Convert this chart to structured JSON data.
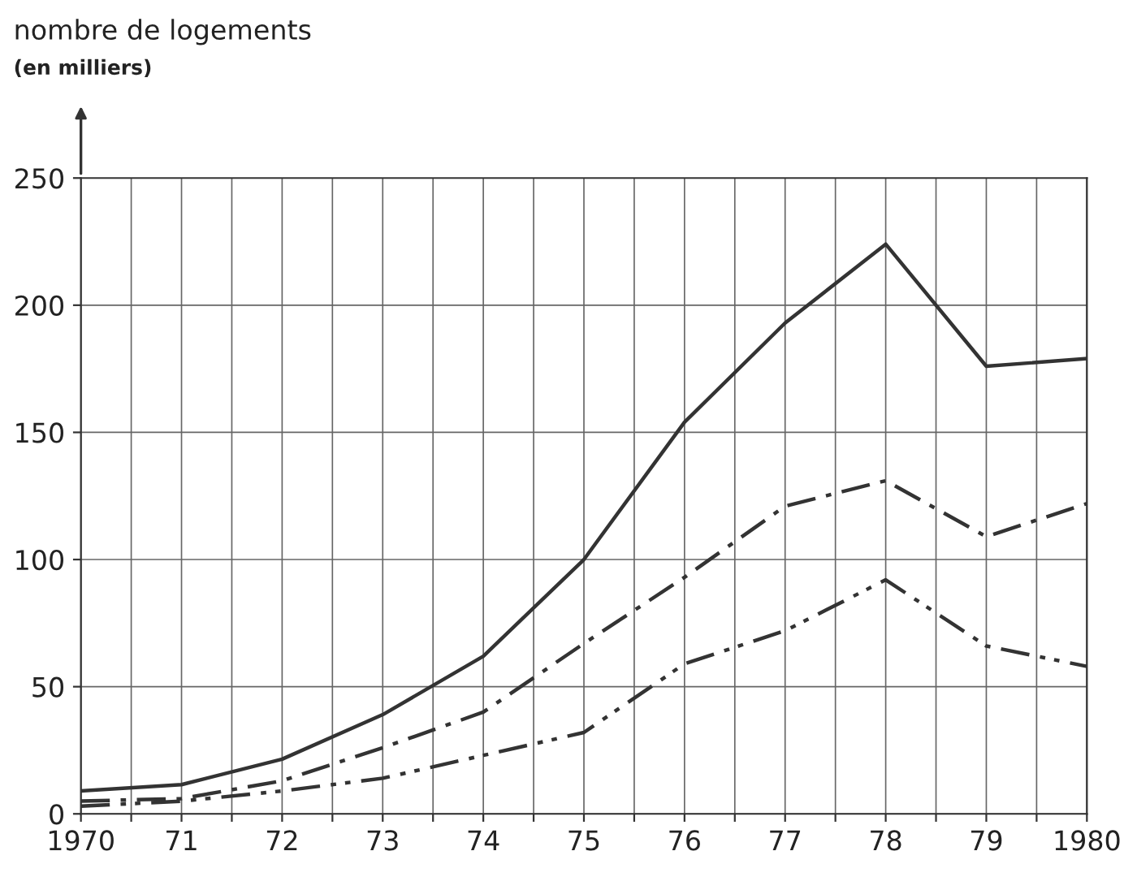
{
  "chart_data": {
    "type": "line",
    "ylabel": "nombre de logements",
    "annotations": [
      "(en milliers)"
    ],
    "x": [
      1970,
      1971,
      1972,
      1973,
      1974,
      1975,
      1976,
      1977,
      1978,
      1979,
      1980
    ],
    "series": [
      {
        "color": "#333333",
        "line_style": "solid",
        "values": [
          9,
          11.5,
          21.5,
          39,
          62,
          100,
          154,
          193,
          224,
          176,
          179
        ]
      },
      {
        "color": "#333333",
        "line_style": "dashdot",
        "values": [
          5,
          6,
          13,
          26,
          40,
          67,
          93,
          121,
          131,
          109,
          122
        ]
      },
      {
        "color": "#333333",
        "line_style": "dashdotdot",
        "values": [
          3,
          5,
          9,
          14,
          23,
          32,
          59,
          72,
          92,
          66,
          58
        ]
      }
    ],
    "xlim": [
      1970,
      1980
    ],
    "xticks": [
      {
        "value": 1970,
        "label": "1970"
      },
      {
        "value": 1970.5,
        "label": null
      },
      {
        "value": 1971,
        "label": "71"
      },
      {
        "value": 1971.5,
        "label": null
      },
      {
        "value": 1972,
        "label": "72"
      },
      {
        "value": 1972.5,
        "label": null
      },
      {
        "value": 1973,
        "label": "73"
      },
      {
        "value": 1973.5,
        "label": null
      },
      {
        "value": 1974,
        "label": "74"
      },
      {
        "value": 1974.5,
        "label": null
      },
      {
        "value": 1975,
        "label": "75"
      },
      {
        "value": 1975.5,
        "label": null
      },
      {
        "value": 1976,
        "label": "76"
      },
      {
        "value": 1976.5,
        "label": null
      },
      {
        "value": 1977,
        "label": "77"
      },
      {
        "value": 1977.5,
        "label": null
      },
      {
        "value": 1978,
        "label": "78"
      },
      {
        "value": 1978.5,
        "label": null
      },
      {
        "value": 1979,
        "label": "79"
      },
      {
        "value": 1979.5,
        "label": null
      },
      {
        "value": 1980,
        "label": "1980"
      }
    ],
    "ylim": [
      0,
      250
    ],
    "yticks": [
      0,
      50,
      100,
      150,
      200,
      250
    ],
    "grid": true,
    "marker": "none"
  }
}
